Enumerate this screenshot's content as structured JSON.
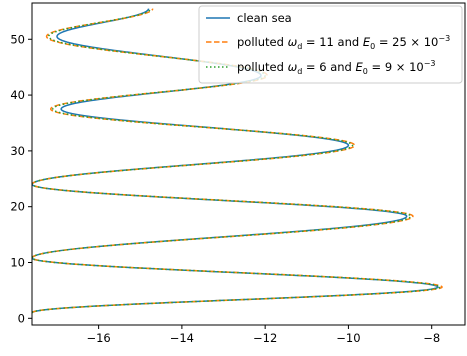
{
  "chart_data": {
    "type": "line",
    "title": "",
    "xlabel": "",
    "ylabel": "",
    "xlim": [
      -17.6,
      -7.2
    ],
    "ylim": [
      -1.2,
      56.5
    ],
    "xticks": [
      -16,
      -14,
      -12,
      -10,
      -8
    ],
    "yticks": [
      0,
      10,
      20,
      30,
      40,
      50
    ],
    "xtick_labels": [
      "−16",
      "−14",
      "−12",
      "−10",
      "−8"
    ],
    "ytick_labels": [
      "0",
      "10",
      "20",
      "30",
      "40",
      "50"
    ],
    "grid": false,
    "legend_position": "top-right",
    "legend": {
      "clean": "clean sea",
      "polluted_a_prefix": "polluted ",
      "polluted_a_mid": " = 11 and ",
      "polluted_a_suffix": " = 25 × 10",
      "polluted_a_exp": "−3",
      "polluted_b_prefix": "polluted ",
      "polluted_b_mid": " = 6 and ",
      "polluted_b_suffix": " = 9 × 10",
      "polluted_b_exp": "−3"
    },
    "series": [
      {
        "name": "clean sea",
        "color": "#1f77b4",
        "style": "solid",
        "turning_points": [
          [
            -17.6,
            1.0
          ],
          [
            -7.85,
            5.6
          ],
          [
            -17.6,
            10.8
          ],
          [
            -8.6,
            18.3
          ],
          [
            -17.6,
            24.0
          ],
          [
            -10.0,
            31.0
          ],
          [
            -16.9,
            37.5
          ],
          [
            -12.1,
            43.5
          ],
          [
            -17.0,
            50.5
          ],
          [
            -14.8,
            55.5
          ]
        ]
      },
      {
        "name": "polluted ωd = 11 and E0 = 25 × 10−3",
        "color": "#ff7f0e",
        "style": "dashed",
        "turning_points": [
          [
            -17.6,
            1.0
          ],
          [
            -7.75,
            5.6
          ],
          [
            -17.6,
            10.8
          ],
          [
            -8.45,
            18.3
          ],
          [
            -17.6,
            24.0
          ],
          [
            -9.85,
            31.0
          ],
          [
            -17.15,
            37.5
          ],
          [
            -11.95,
            43.5
          ],
          [
            -17.25,
            50.5
          ],
          [
            -14.7,
            55.5
          ]
        ]
      },
      {
        "name": "polluted ωd = 6 and E0 = 9 × 10−3",
        "color": "#2ca02c",
        "style": "dotted",
        "turning_points": [
          [
            -17.6,
            1.0
          ],
          [
            -7.8,
            5.6
          ],
          [
            -17.6,
            10.8
          ],
          [
            -8.5,
            18.3
          ],
          [
            -17.6,
            24.0
          ],
          [
            -9.9,
            31.0
          ],
          [
            -17.1,
            37.5
          ],
          [
            -12.0,
            43.5
          ],
          [
            -17.2,
            50.5
          ],
          [
            -14.75,
            55.5
          ]
        ]
      }
    ]
  }
}
